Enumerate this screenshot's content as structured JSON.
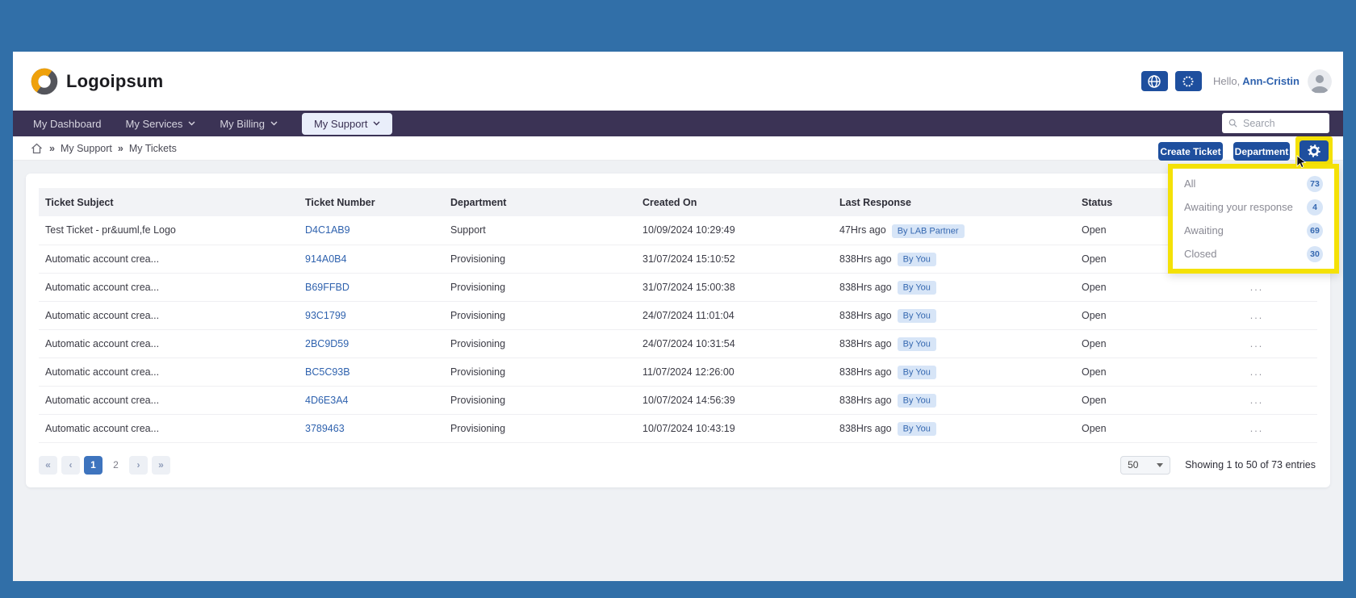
{
  "header": {
    "logo_text": "Logoipsum",
    "greeting_prefix": "Hello,",
    "user_name": "Ann-Cristin"
  },
  "nav": {
    "items": [
      {
        "label": "My Dashboard",
        "has_chevron": false,
        "active": false
      },
      {
        "label": "My Services",
        "has_chevron": true,
        "active": false
      },
      {
        "label": "My Billing",
        "has_chevron": true,
        "active": false
      },
      {
        "label": "My Support",
        "has_chevron": true,
        "active": true
      }
    ],
    "search_placeholder": "Search"
  },
  "breadcrumb": {
    "separator": "»",
    "items": [
      "My Support",
      "My Tickets"
    ]
  },
  "toolbar": {
    "create_ticket_label": "Create Ticket",
    "department_label": "Department"
  },
  "filter_dropdown": {
    "items": [
      {
        "label": "All",
        "count": "73"
      },
      {
        "label": "Awaiting your response",
        "count": "4"
      },
      {
        "label": "Awaiting",
        "count": "69"
      },
      {
        "label": "Closed",
        "count": "30"
      }
    ]
  },
  "table": {
    "columns": [
      "Ticket Subject",
      "Ticket Number",
      "Department",
      "Created On",
      "Last Response",
      "Status",
      ""
    ],
    "ellipsis": "...",
    "rows": [
      {
        "subject": "Test Ticket - pr&uuml,fe Logo",
        "number": "D4C1AB9",
        "department": "Support",
        "created_on": "10/09/2024 10:29:49",
        "last_response": "47Hrs ago",
        "last_response_by": "By LAB Partner",
        "status": "Open"
      },
      {
        "subject": "Automatic account crea...",
        "number": "914A0B4",
        "department": "Provisioning",
        "created_on": "31/07/2024 15:10:52",
        "last_response": "838Hrs ago",
        "last_response_by": "By You",
        "status": "Open"
      },
      {
        "subject": "Automatic account crea...",
        "number": "B69FFBD",
        "department": "Provisioning",
        "created_on": "31/07/2024 15:00:38",
        "last_response": "838Hrs ago",
        "last_response_by": "By You",
        "status": "Open"
      },
      {
        "subject": "Automatic account crea...",
        "number": "93C1799",
        "department": "Provisioning",
        "created_on": "24/07/2024 11:01:04",
        "last_response": "838Hrs ago",
        "last_response_by": "By You",
        "status": "Open"
      },
      {
        "subject": "Automatic account crea...",
        "number": "2BC9D59",
        "department": "Provisioning",
        "created_on": "24/07/2024 10:31:54",
        "last_response": "838Hrs ago",
        "last_response_by": "By You",
        "status": "Open"
      },
      {
        "subject": "Automatic account crea...",
        "number": "BC5C93B",
        "department": "Provisioning",
        "created_on": "11/07/2024 12:26:00",
        "last_response": "838Hrs ago",
        "last_response_by": "By You",
        "status": "Open"
      },
      {
        "subject": "Automatic account crea...",
        "number": "4D6E3A4",
        "department": "Provisioning",
        "created_on": "10/07/2024 14:56:39",
        "last_response": "838Hrs ago",
        "last_response_by": "By You",
        "status": "Open"
      },
      {
        "subject": "Automatic account crea...",
        "number": "3789463",
        "department": "Provisioning",
        "created_on": "10/07/2024 10:43:19",
        "last_response": "838Hrs ago",
        "last_response_by": "By You",
        "status": "Open"
      }
    ]
  },
  "pagination": {
    "first_label": "«",
    "prev_label": "‹",
    "next_label": "›",
    "last_label": "»",
    "pages": [
      "1",
      "2"
    ],
    "active_page": "1",
    "page_size": "50",
    "showing_text": "Showing 1 to 50 of 73 entries"
  },
  "colors": {
    "frame_blue": "#316FA8",
    "nav_purple": "#3B3355",
    "primary_button_blue": "#1E4F9E",
    "link_blue": "#2F62AE",
    "active_page_blue": "#3E74BE",
    "badge_bg": "#D7E5F7",
    "badge_text": "#3568B0",
    "highlight_yellow": "#F4E106",
    "logo_orange": "#EFA10B",
    "logo_gray": "#54555B"
  },
  "icons": {
    "globe_icon": "globe glyph",
    "eu_flag_icon": "circle of stars",
    "search_icon": "magnifier",
    "home_icon": "house outline",
    "chevron_down_icon": "v chevron",
    "gear_icon": "cog",
    "avatar_icon": "person silhouette",
    "ellipsis_icon": "...",
    "cursor_icon": "mouse pointer"
  }
}
